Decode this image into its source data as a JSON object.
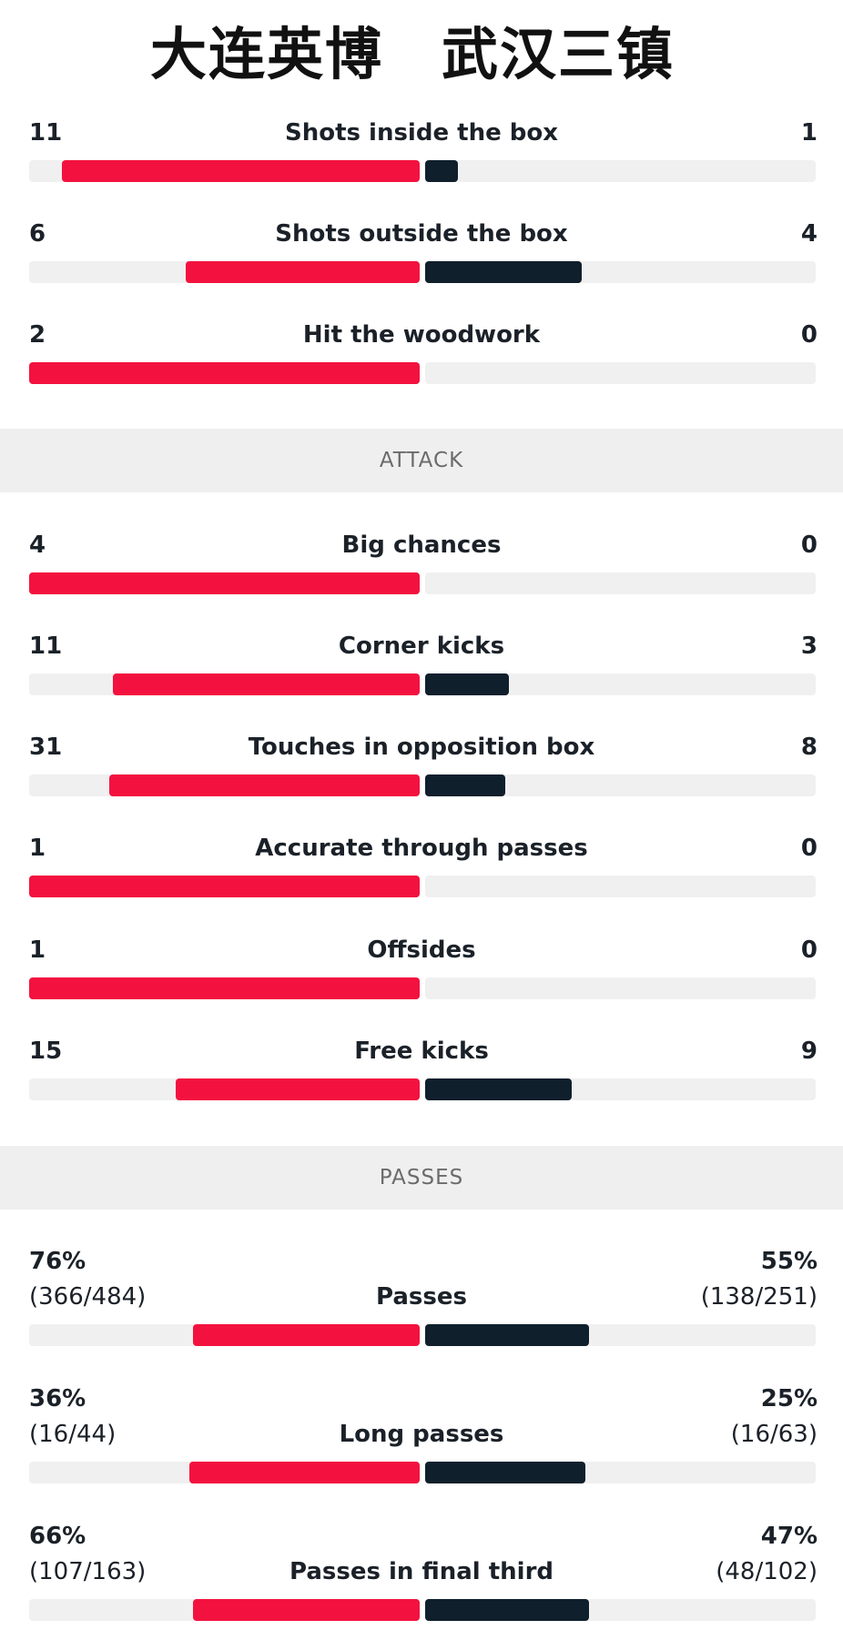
{
  "teams": {
    "home": "大连英博",
    "away": "武汉三镇"
  },
  "colors": {
    "home": "#f3123f",
    "away": "#0f1f2c",
    "track": "#f0f0f0"
  },
  "shots": [
    {
      "label": "Shots inside the box",
      "home": "11",
      "away": "1",
      "home_share": 0.917,
      "away_share": 0.083
    },
    {
      "label": "Shots outside the box",
      "home": "6",
      "away": "4",
      "home_share": 0.6,
      "away_share": 0.4
    },
    {
      "label": "Hit the woodwork",
      "home": "2",
      "away": "0",
      "home_share": 1.0,
      "away_share": 0.0
    }
  ],
  "sections": {
    "attack": "ATTACK",
    "passes": "PASSES"
  },
  "attack": [
    {
      "label": "Big chances",
      "home": "4",
      "away": "0",
      "home_share": 1.0,
      "away_share": 0.0
    },
    {
      "label": "Corner kicks",
      "home": "11",
      "away": "3",
      "home_share": 0.786,
      "away_share": 0.214
    },
    {
      "label": "Touches in opposition box",
      "home": "31",
      "away": "8",
      "home_share": 0.795,
      "away_share": 0.205
    },
    {
      "label": "Accurate through passes",
      "home": "1",
      "away": "0",
      "home_share": 1.0,
      "away_share": 0.0
    },
    {
      "label": "Offsides",
      "home": "1",
      "away": "0",
      "home_share": 1.0,
      "away_share": 0.0
    },
    {
      "label": "Free kicks",
      "home": "15",
      "away": "9",
      "home_share": 0.625,
      "away_share": 0.375
    }
  ],
  "passes": [
    {
      "label": "Passes",
      "home_pct": "76%",
      "home_detail": "(366/484)",
      "away_pct": "55%",
      "away_detail": "(138/251)",
      "home_share": 0.58,
      "away_share": 0.42
    },
    {
      "label": "Long passes",
      "home_pct": "36%",
      "home_detail": "(16/44)",
      "away_pct": "25%",
      "away_detail": "(16/63)",
      "home_share": 0.59,
      "away_share": 0.41
    },
    {
      "label": "Passes in final third",
      "home_pct": "66%",
      "home_detail": "(107/163)",
      "away_pct": "47%",
      "away_detail": "(48/102)",
      "home_share": 0.58,
      "away_share": 0.42
    }
  ]
}
